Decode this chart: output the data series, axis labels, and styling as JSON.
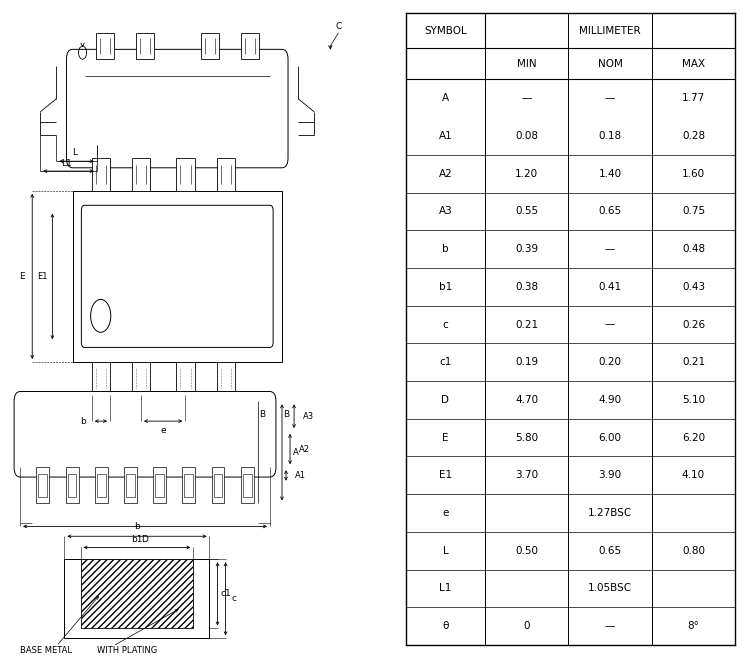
{
  "table_headers": [
    "SYMBOL",
    "MIN",
    "NOM",
    "MAX"
  ],
  "millimeter_label": "MILLIMETER",
  "rows": [
    [
      "A",
      "—",
      "—",
      "1.77"
    ],
    [
      "A1",
      "0.08",
      "0.18",
      "0.28"
    ],
    [
      "A2",
      "1.20",
      "1.40",
      "1.60"
    ],
    [
      "A3",
      "0.55",
      "0.65",
      "0.75"
    ],
    [
      "b",
      "0.39",
      "—",
      "0.48"
    ],
    [
      "b1",
      "0.38",
      "0.41",
      "0.43"
    ],
    [
      "c",
      "0.21",
      "—",
      "0.26"
    ],
    [
      "c1",
      "0.19",
      "0.20",
      "0.21"
    ],
    [
      "D",
      "4.70",
      "4.90",
      "5.10"
    ],
    [
      "E",
      "5.80",
      "6.00",
      "6.20"
    ],
    [
      "E1",
      "3.70",
      "3.90",
      "4.10"
    ],
    [
      "e",
      "1.27BSC",
      null,
      null
    ],
    [
      "L",
      "0.50",
      "0.65",
      "0.80"
    ],
    [
      "L1",
      "1.05BSC",
      null,
      null
    ],
    [
      "θ",
      "0",
      "—",
      "8°"
    ]
  ],
  "bg_color": "#ffffff",
  "line_color": "#000000",
  "text_color": "#000000",
  "font_size": 7.5,
  "header_font_size": 8.0
}
